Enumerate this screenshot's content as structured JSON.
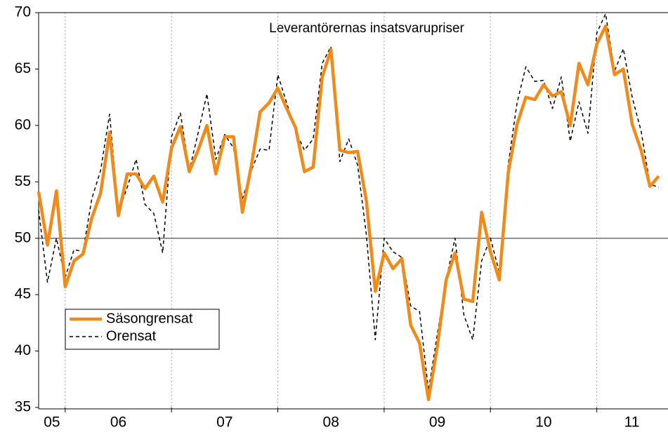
{
  "chart_data": {
    "type": "line",
    "title": "Leverantörernas insatsvarupriser",
    "x": [
      2005.75,
      2005.833,
      2005.917,
      2006,
      2006.083,
      2006.167,
      2006.25,
      2006.333,
      2006.417,
      2006.5,
      2006.583,
      2006.667,
      2006.75,
      2006.833,
      2006.917,
      2007,
      2007.083,
      2007.167,
      2007.25,
      2007.333,
      2007.417,
      2007.5,
      2007.583,
      2007.667,
      2007.75,
      2007.833,
      2007.917,
      2008,
      2008.083,
      2008.167,
      2008.25,
      2008.333,
      2008.417,
      2008.5,
      2008.583,
      2008.667,
      2008.75,
      2008.833,
      2008.917,
      2009,
      2009.083,
      2009.167,
      2009.25,
      2009.333,
      2009.417,
      2009.5,
      2009.583,
      2009.667,
      2009.75,
      2009.833,
      2009.917,
      2010,
      2010.083,
      2010.167,
      2010.25,
      2010.333,
      2010.417,
      2010.5,
      2010.583,
      2010.667,
      2010.75,
      2010.833,
      2010.917,
      2011,
      2011.083,
      2011.167,
      2011.25,
      2011.333,
      2011.417,
      2011.5,
      2011.583
    ],
    "series": [
      {
        "name": "Säsongrensat",
        "color": "#f28a1a",
        "dash": false,
        "values": [
          54.1,
          49.4,
          54.2,
          45.7,
          48.0,
          48.6,
          51.8,
          54.0,
          59.4,
          52.0,
          55.7,
          55.7,
          54.4,
          55.5,
          53.2,
          58.0,
          59.9,
          55.9,
          57.8,
          60.0,
          55.7,
          59.0,
          59.0,
          52.3,
          56.4,
          61.2,
          62.0,
          63.3,
          61.5,
          59.8,
          55.9,
          56.3,
          64.3,
          66.7,
          57.8,
          57.6,
          57.7,
          53.3,
          45.3,
          48.7,
          47.3,
          48.2,
          42.3,
          40.7,
          35.7,
          40.4,
          46.3,
          48.7,
          44.6,
          44.4,
          52.3,
          48.8,
          46.3,
          55.8,
          60.1,
          62.5,
          62.3,
          63.6,
          62.6,
          63.0,
          60.0,
          65.5,
          63.6,
          67.2,
          68.8,
          64.5,
          65.0,
          60.1,
          57.8,
          54.6,
          55.5
        ]
      },
      {
        "name": "Orensat",
        "color": "#000000",
        "dash": true,
        "values": [
          52.5,
          46.1,
          50.0,
          46.5,
          49.0,
          48.8,
          53.5,
          56.0,
          61.0,
          52.3,
          54.5,
          57.0,
          53.0,
          52.2,
          48.7,
          59.0,
          61.1,
          56.0,
          59.3,
          62.8,
          57.0,
          59.2,
          58.0,
          53.5,
          56.0,
          57.9,
          57.8,
          64.5,
          62.0,
          59.5,
          57.8,
          58.8,
          65.5,
          67.0,
          56.8,
          58.8,
          56.5,
          50.3,
          41.0,
          50.0,
          48.8,
          48.3,
          44.0,
          43.5,
          36.5,
          41.5,
          46.3,
          50.0,
          43.2,
          41.0,
          48.0,
          50.0,
          47.0,
          56.5,
          62.0,
          65.2,
          63.9,
          64.0,
          61.5,
          64.3,
          58.6,
          62.1,
          59.3,
          68.2,
          69.9,
          64.8,
          66.8,
          62.5,
          59.5,
          54.8,
          54.5
        ]
      }
    ],
    "xlim": [
      2005.75,
      2011.67
    ],
    "xticks": [
      {
        "value": 2005.875,
        "label": "05"
      },
      {
        "value": 2006.5,
        "label": "06"
      },
      {
        "value": 2007.5,
        "label": "07"
      },
      {
        "value": 2008.5,
        "label": "08"
      },
      {
        "value": 2009.5,
        "label": "09"
      },
      {
        "value": 2010.5,
        "label": "10"
      },
      {
        "value": 2011.33,
        "label": "11"
      }
    ],
    "xgrid": [
      2006,
      2007,
      2008,
      2009,
      2010,
      2011
    ],
    "ylim": [
      35,
      70
    ],
    "yticks": [
      35,
      40,
      45,
      50,
      55,
      60,
      65,
      70
    ],
    "hline": 50,
    "legend": "left"
  }
}
